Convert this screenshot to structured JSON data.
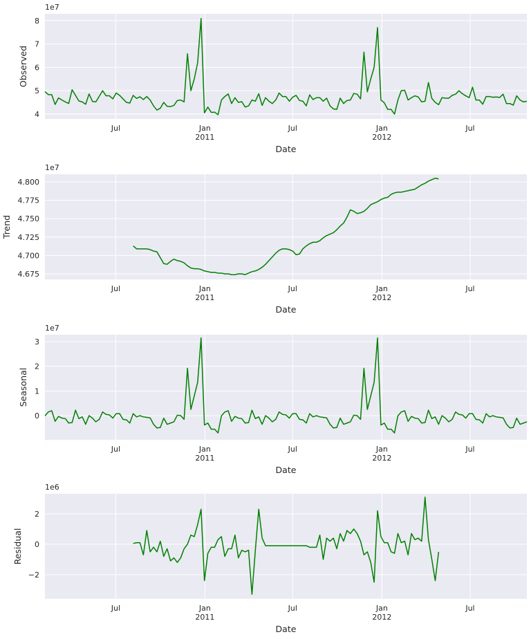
{
  "chart_data": [
    {
      "type": "line",
      "ylabel": "Observed",
      "xlabel": "Date",
      "offset_label": "1e7",
      "xlim": [
        0,
        142
      ],
      "xticks": [
        {
          "value": 20.86,
          "label": "Jul"
        },
        {
          "value": 47.14,
          "label": "Jan",
          "sublabel": "2011"
        },
        {
          "value": 73.0,
          "label": "Jul"
        },
        {
          "value": 99.29,
          "label": "Jan",
          "sublabel": "2012"
        },
        {
          "value": 125.29,
          "label": "Jul"
        }
      ],
      "ylim": [
        3.79,
        8.29
      ],
      "yticks": [
        4,
        5,
        6,
        7,
        8
      ],
      "grid": true,
      "series": [
        {
          "color": "#008000",
          "values": [
            4.96,
            4.83,
            4.83,
            4.41,
            4.69,
            4.6,
            4.52,
            4.45,
            5.04,
            4.8,
            4.56,
            4.52,
            4.42,
            4.86,
            4.54,
            4.52,
            4.76,
            5.0,
            4.78,
            4.78,
            4.65,
            4.9,
            4.8,
            4.65,
            4.5,
            4.47,
            4.8,
            4.67,
            4.74,
            4.62,
            4.75,
            4.6,
            4.35,
            4.17,
            4.25,
            4.5,
            4.33,
            4.32,
            4.37,
            4.58,
            4.6,
            4.52,
            6.58,
            5.0,
            5.5,
            6.2,
            8.09,
            4.05,
            4.3,
            4.07,
            4.08,
            3.97,
            4.6,
            4.75,
            4.86,
            4.45,
            4.7,
            4.5,
            4.53,
            4.3,
            4.35,
            4.6,
            4.55,
            4.87,
            4.37,
            4.7,
            4.55,
            4.45,
            4.6,
            4.9,
            4.75,
            4.75,
            4.55,
            4.72,
            4.8,
            4.58,
            4.55,
            4.35,
            4.82,
            4.62,
            4.7,
            4.7,
            4.55,
            4.68,
            4.35,
            4.22,
            4.2,
            4.68,
            4.45,
            4.58,
            4.6,
            4.88,
            4.85,
            4.65,
            6.65,
            4.95,
            5.5,
            6.0,
            7.7,
            4.6,
            4.48,
            4.2,
            4.2,
            4.0,
            4.6,
            5.0,
            5.02,
            4.6,
            4.7,
            4.78,
            4.73,
            4.52,
            4.55,
            5.35,
            4.67,
            4.5,
            4.4,
            4.7,
            4.68,
            4.68,
            4.8,
            4.85,
            5.0,
            4.87,
            4.78,
            4.7,
            5.15,
            4.6,
            4.6,
            4.42,
            4.75,
            4.75,
            4.72,
            4.73,
            4.71,
            4.85,
            4.45,
            4.45,
            4.38,
            4.78,
            4.6,
            4.52,
            4.55
          ]
        }
      ]
    },
    {
      "type": "line",
      "ylabel": "Trend",
      "xlabel": "Date",
      "offset_label": "1e7",
      "xlim": [
        0,
        142
      ],
      "xticks": [
        {
          "value": 20.86,
          "label": "Jul"
        },
        {
          "value": 47.14,
          "label": "Jan",
          "sublabel": "2011"
        },
        {
          "value": 73.0,
          "label": "Jul"
        },
        {
          "value": 99.29,
          "label": "Jan",
          "sublabel": "2012"
        },
        {
          "value": 125.29,
          "label": "Jul"
        }
      ],
      "ylim": [
        4.6675,
        4.8103
      ],
      "yticks": [
        {
          "value": 4.675,
          "label": "4.675"
        },
        {
          "value": 4.7,
          "label": "4.700"
        },
        {
          "value": 4.725,
          "label": "4.725"
        },
        {
          "value": 4.75,
          "label": "4.750"
        },
        {
          "value": 4.775,
          "label": "4.775"
        },
        {
          "value": 4.8,
          "label": "4.800"
        }
      ],
      "grid": true,
      "series": [
        {
          "color": "#008000",
          "values": [
            null,
            null,
            null,
            null,
            null,
            null,
            null,
            null,
            null,
            null,
            null,
            null,
            null,
            null,
            null,
            null,
            null,
            null,
            null,
            null,
            null,
            null,
            null,
            null,
            null,
            null,
            4.713,
            4.709,
            4.709,
            4.709,
            4.709,
            4.708,
            4.706,
            4.705,
            4.697,
            4.689,
            4.688,
            4.692,
            4.695,
            4.693,
            4.692,
            4.69,
            4.686,
            4.683,
            4.682,
            4.682,
            4.681,
            4.679,
            4.678,
            4.677,
            4.677,
            4.676,
            4.676,
            4.675,
            4.675,
            4.674,
            4.674,
            4.675,
            4.675,
            4.674,
            4.676,
            4.678,
            4.679,
            4.681,
            4.684,
            4.688,
            4.693,
            4.698,
            4.703,
            4.707,
            4.709,
            4.709,
            4.708,
            4.706,
            4.701,
            4.702,
            4.709,
            4.713,
            4.716,
            4.718,
            4.718,
            4.72,
            4.724,
            4.727,
            4.729,
            4.731,
            4.735,
            4.74,
            4.744,
            4.752,
            4.762,
            4.76,
            4.757,
            4.758,
            4.76,
            4.764,
            4.769,
            4.771,
            4.773,
            4.776,
            4.778,
            4.779,
            4.783,
            4.785,
            4.786,
            4.786,
            4.787,
            4.788,
            4.789,
            4.79,
            4.793,
            4.796,
            4.798,
            4.801,
            4.803,
            4.805,
            4.804,
            null,
            null,
            null,
            null,
            null,
            null,
            null,
            null,
            null,
            null,
            null,
            null,
            null,
            null,
            null,
            null,
            null,
            null,
            null,
            null,
            null,
            null,
            null,
            null,
            null,
            null
          ]
        }
      ]
    },
    {
      "type": "line",
      "ylabel": "Seasonal",
      "xlabel": "Date",
      "offset_label": "1e7",
      "xlim": [
        0,
        142
      ],
      "xticks": [
        {
          "value": 20.86,
          "label": "Jul"
        },
        {
          "value": 47.14,
          "label": "Jan",
          "sublabel": "2011"
        },
        {
          "value": 73.0,
          "label": "Jul"
        },
        {
          "value": 99.29,
          "label": "Jan",
          "sublabel": "2012"
        },
        {
          "value": 125.29,
          "label": "Jul"
        }
      ],
      "ylim": [
        -0.98,
        3.28
      ],
      "yticks": [
        0,
        1,
        2,
        3
      ],
      "grid": true,
      "series": [
        {
          "color": "#008000",
          "values": [
            -0.01,
            0.15,
            0.2,
            -0.23,
            -0.03,
            -0.1,
            -0.12,
            -0.3,
            -0.28,
            0.22,
            -0.12,
            -0.05,
            -0.35,
            0,
            -0.1,
            -0.25,
            -0.15,
            0.15,
            0.05,
            0.03,
            -0.1,
            0.08,
            0.08,
            -0.15,
            -0.17,
            -0.3,
            0.08,
            -0.05,
            0,
            -0.05,
            -0.07,
            -0.09,
            -0.35,
            -0.5,
            -0.48,
            -0.1,
            -0.35,
            -0.3,
            -0.25,
            0.02,
            0,
            -0.15,
            1.92,
            0.25,
            0.8,
            1.35,
            3.15,
            -0.38,
            -0.3,
            -0.55,
            -0.55,
            -0.7,
            -0.01,
            0.15,
            0.2,
            -0.23,
            -0.03,
            -0.1,
            -0.12,
            -0.3,
            -0.28,
            0.22,
            -0.12,
            -0.05,
            -0.35,
            0,
            -0.1,
            -0.25,
            -0.15,
            0.15,
            0.05,
            0.03,
            -0.1,
            0.08,
            0.08,
            -0.15,
            -0.17,
            -0.3,
            0.08,
            -0.05,
            0,
            -0.05,
            -0.07,
            -0.09,
            -0.35,
            -0.5,
            -0.48,
            -0.1,
            -0.35,
            -0.3,
            -0.25,
            0.02,
            0,
            -0.15,
            1.92,
            0.25,
            0.8,
            1.35,
            3.15,
            -0.38,
            -0.3,
            -0.55,
            -0.55,
            -0.7,
            -0.01,
            0.15,
            0.2,
            -0.23,
            -0.03,
            -0.1,
            -0.12,
            -0.3,
            -0.28,
            0.22,
            -0.12,
            -0.05,
            -0.35,
            0,
            -0.1,
            -0.25,
            -0.15,
            0.15,
            0.05,
            0.03,
            -0.1,
            0.08,
            0.08,
            -0.15,
            -0.17,
            -0.3,
            0.08,
            -0.05,
            0,
            -0.05,
            -0.07,
            -0.09,
            -0.35,
            -0.5,
            -0.48,
            -0.1,
            -0.35,
            -0.3,
            -0.25
          ]
        }
      ]
    },
    {
      "type": "line",
      "ylabel": "Residual",
      "xlabel": "Date",
      "offset_label": "1e6",
      "xlim": [
        0,
        142
      ],
      "xticks": [
        {
          "value": 20.86,
          "label": "Jul"
        },
        {
          "value": 47.14,
          "label": "Jan",
          "sublabel": "2011"
        },
        {
          "value": 73.0,
          "label": "Jul"
        },
        {
          "value": 99.29,
          "label": "Jan",
          "sublabel": "2012"
        },
        {
          "value": 125.29,
          "label": "Jul"
        }
      ],
      "ylim": [
        -3.6,
        3.32
      ],
      "yticks": [
        {
          "value": -2,
          "label": "−2"
        },
        0,
        2
      ],
      "grid": true,
      "series": [
        {
          "color": "#008000",
          "values": [
            null,
            null,
            null,
            null,
            null,
            null,
            null,
            null,
            null,
            null,
            null,
            null,
            null,
            null,
            null,
            null,
            null,
            null,
            null,
            null,
            null,
            null,
            null,
            null,
            null,
            null,
            0.05,
            0.1,
            0.1,
            -0.7,
            0.9,
            -0.5,
            -0.2,
            -0.5,
            0.2,
            -0.8,
            -0.3,
            -1.1,
            -0.9,
            -1.2,
            -0.9,
            -0.3,
            0,
            0.6,
            0.5,
            1.3,
            2.3,
            -2.4,
            -0.6,
            -0.2,
            -0.2,
            0.3,
            0.5,
            -0.8,
            -0.3,
            -0.3,
            0.6,
            -0.9,
            -0.4,
            -0.5,
            -0.4,
            -3.3,
            -0.4,
            2.3,
            0.4,
            -0.1,
            -0.1,
            -0.1,
            -0.1,
            -0.1,
            -0.1,
            -0.1,
            -0.1,
            -0.1,
            -0.1,
            -0.1,
            -0.1,
            -0.1,
            -0.2,
            -0.2,
            -0.2,
            0.6,
            -1.0,
            0.4,
            0.2,
            0.4,
            -0.3,
            0.7,
            0.2,
            0.9,
            0.7,
            1.0,
            0.7,
            0.2,
            -0.7,
            -0.5,
            -1.2,
            -2.5,
            2.2,
            0.5,
            0.1,
            0.1,
            -0.5,
            -0.6,
            0.7,
            0.1,
            0.2,
            -0.7,
            0.7,
            0.3,
            0.4,
            0.2,
            3.1,
            0.3,
            -1.0,
            -2.4,
            -0.5,
            null,
            null,
            null,
            null,
            null,
            null,
            null,
            null,
            null,
            null,
            null,
            null,
            null,
            null,
            null,
            null,
            null,
            null,
            null,
            null,
            null,
            null,
            null,
            null,
            null,
            null
          ]
        }
      ]
    }
  ]
}
